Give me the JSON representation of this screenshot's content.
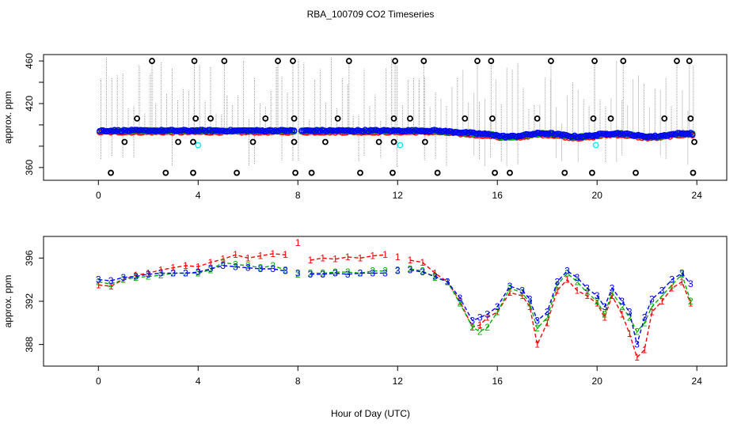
{
  "figure": {
    "title": "RBA_100709  CO2 Timeseries",
    "xlabel": "Hour of Day (UTC)"
  },
  "chart_data": [
    {
      "type": "scatter",
      "title": "",
      "xlabel": "",
      "ylabel": "approx. ppm",
      "xlim": [
        -2.2,
        25.2
      ],
      "ylim": [
        348,
        466
      ],
      "xticks": [
        0,
        4,
        8,
        12,
        16,
        20,
        24
      ],
      "yticks": [
        360,
        380,
        400,
        420,
        440,
        460
      ],
      "ytick_labels": [
        "360",
        "",
        "",
        "420",
        "",
        "460"
      ],
      "grid": false,
      "legend": "none",
      "colors": {
        "outlier": "#000000",
        "s1": "#ff0000",
        "s2": "#00b000",
        "s3": "#0000ff",
        "cyan": "#00e5ff",
        "vline": "#999999"
      },
      "outliers_high": [
        2.15,
        3.85,
        5.05,
        7.2,
        7.8,
        10.05,
        11.9,
        13.05,
        15.2,
        15.75,
        18.15,
        19.9,
        21.05,
        23.2,
        23.7
      ],
      "outliers_low": [
        0.5,
        2.7,
        3.8,
        5.55,
        7.9,
        8.55,
        10.5,
        11.8,
        13.6,
        15.9,
        16.5,
        18.7,
        19.8,
        21.55,
        23.85
      ],
      "outliers_mid": [
        {
          "x": 1.55,
          "y": 406
        },
        {
          "x": 3.9,
          "y": 406
        },
        {
          "x": 4.5,
          "y": 406
        },
        {
          "x": 6.7,
          "y": 406
        },
        {
          "x": 7.85,
          "y": 406
        },
        {
          "x": 9.6,
          "y": 406
        },
        {
          "x": 11.85,
          "y": 406
        },
        {
          "x": 12.5,
          "y": 406
        },
        {
          "x": 14.7,
          "y": 406
        },
        {
          "x": 15.8,
          "y": 406
        },
        {
          "x": 17.6,
          "y": 406
        },
        {
          "x": 19.85,
          "y": 406
        },
        {
          "x": 20.55,
          "y": 406
        },
        {
          "x": 22.7,
          "y": 406
        },
        {
          "x": 23.75,
          "y": 406
        },
        {
          "x": 1.05,
          "y": 384
        },
        {
          "x": 3.2,
          "y": 384
        },
        {
          "x": 3.8,
          "y": 384
        },
        {
          "x": 6.2,
          "y": 384
        },
        {
          "x": 7.85,
          "y": 384
        },
        {
          "x": 9.1,
          "y": 384
        },
        {
          "x": 11.25,
          "y": 384
        },
        {
          "x": 11.85,
          "y": 384
        },
        {
          "x": 13.1,
          "y": 384
        },
        {
          "x": 23.9,
          "y": 384
        }
      ],
      "cyan_points": [
        {
          "x": 4.0,
          "y": 381
        },
        {
          "x": 12.1,
          "y": 381
        },
        {
          "x": 19.95,
          "y": 381
        }
      ]
    },
    {
      "type": "line",
      "title": "",
      "xlabel": "",
      "ylabel": "approx. ppm",
      "xlim": [
        -2.2,
        25.2
      ],
      "ylim": [
        386,
        398
      ],
      "xticks": [
        0,
        4,
        8,
        12,
        16,
        20,
        24
      ],
      "yticks": [
        388,
        392,
        396
      ],
      "grid": false,
      "legend": "none",
      "markers": [
        "1",
        "2",
        "3"
      ],
      "colors": {
        "1": "#ff0000",
        "2": "#00b000",
        "3": "#0000ff"
      },
      "segments": [
        [
          0,
          7.9
        ],
        [
          8.1,
          11.9
        ],
        [
          12.05,
          23.75
        ]
      ],
      "x": [
        0.0,
        0.5,
        1.0,
        1.5,
        2.0,
        2.5,
        3.0,
        3.5,
        4.0,
        4.5,
        5.0,
        5.5,
        6.0,
        6.5,
        7.0,
        7.5,
        8.0,
        8.5,
        9.0,
        9.5,
        10.0,
        10.5,
        11.0,
        11.5,
        12.0,
        12.5,
        13.0,
        13.5,
        14.0,
        14.5,
        15.0,
        15.3,
        15.6,
        16.0,
        16.5,
        17.0,
        17.3,
        17.6,
        18.0,
        18.4,
        18.8,
        19.2,
        19.6,
        20.0,
        20.3,
        20.6,
        21.0,
        21.3,
        21.6,
        21.9,
        22.2,
        22.6,
        23.0,
        23.4,
        23.75
      ],
      "series": [
        {
          "name": "1",
          "values": [
            393.5,
            393.4,
            394.0,
            394.4,
            394.6,
            394.9,
            395.1,
            395.3,
            395.2,
            395.6,
            395.9,
            396.3,
            396.0,
            396.2,
            396.4,
            396.3,
            397.4,
            395.8,
            396.0,
            395.9,
            396.1,
            396.0,
            396.2,
            396.3,
            396.1,
            395.8,
            395.6,
            394.6,
            393.8,
            392.0,
            389.6,
            389.8,
            390.5,
            391.0,
            392.8,
            392.5,
            391.5,
            388.0,
            390.0,
            393.0,
            394.0,
            393.0,
            392.5,
            391.8,
            390.5,
            392.5,
            390.8,
            389.0,
            386.8,
            387.5,
            391.0,
            392.0,
            393.2,
            393.8,
            391.8
          ]
        },
        {
          "name": "2",
          "values": [
            393.8,
            393.6,
            394.0,
            394.2,
            394.3,
            394.4,
            394.6,
            394.6,
            394.6,
            394.9,
            395.6,
            395.4,
            395.3,
            395.1,
            395.3,
            394.9,
            394.5,
            394.6,
            394.6,
            394.7,
            394.7,
            394.6,
            394.8,
            394.8,
            394.9,
            395.0,
            394.8,
            394.2,
            393.8,
            391.8,
            389.6,
            389.2,
            389.6,
            391.0,
            393.2,
            392.8,
            391.8,
            389.5,
            390.5,
            393.5,
            394.6,
            393.8,
            392.8,
            392.0,
            390.8,
            392.8,
            391.5,
            390.5,
            389.2,
            390.0,
            391.5,
            392.5,
            393.5,
            394.5,
            392.0
          ]
        },
        {
          "name": "3",
          "values": [
            394.0,
            393.9,
            394.2,
            394.3,
            394.5,
            394.6,
            394.6,
            394.6,
            394.7,
            395.0,
            395.3,
            395.2,
            395.1,
            395.0,
            395.0,
            394.8,
            394.6,
            394.5,
            394.5,
            394.6,
            394.5,
            394.6,
            394.6,
            394.6,
            394.8,
            394.9,
            394.7,
            394.3,
            393.8,
            392.3,
            390.2,
            390.5,
            390.8,
            391.5,
            393.4,
            393.0,
            392.2,
            390.2,
            391.0,
            393.8,
            394.8,
            394.2,
            393.2,
            392.5,
            391.5,
            393.2,
            392.0,
            391.0,
            388.0,
            390.5,
            392.2,
            393.0,
            394.0,
            394.6,
            393.6
          ]
        }
      ]
    }
  ]
}
